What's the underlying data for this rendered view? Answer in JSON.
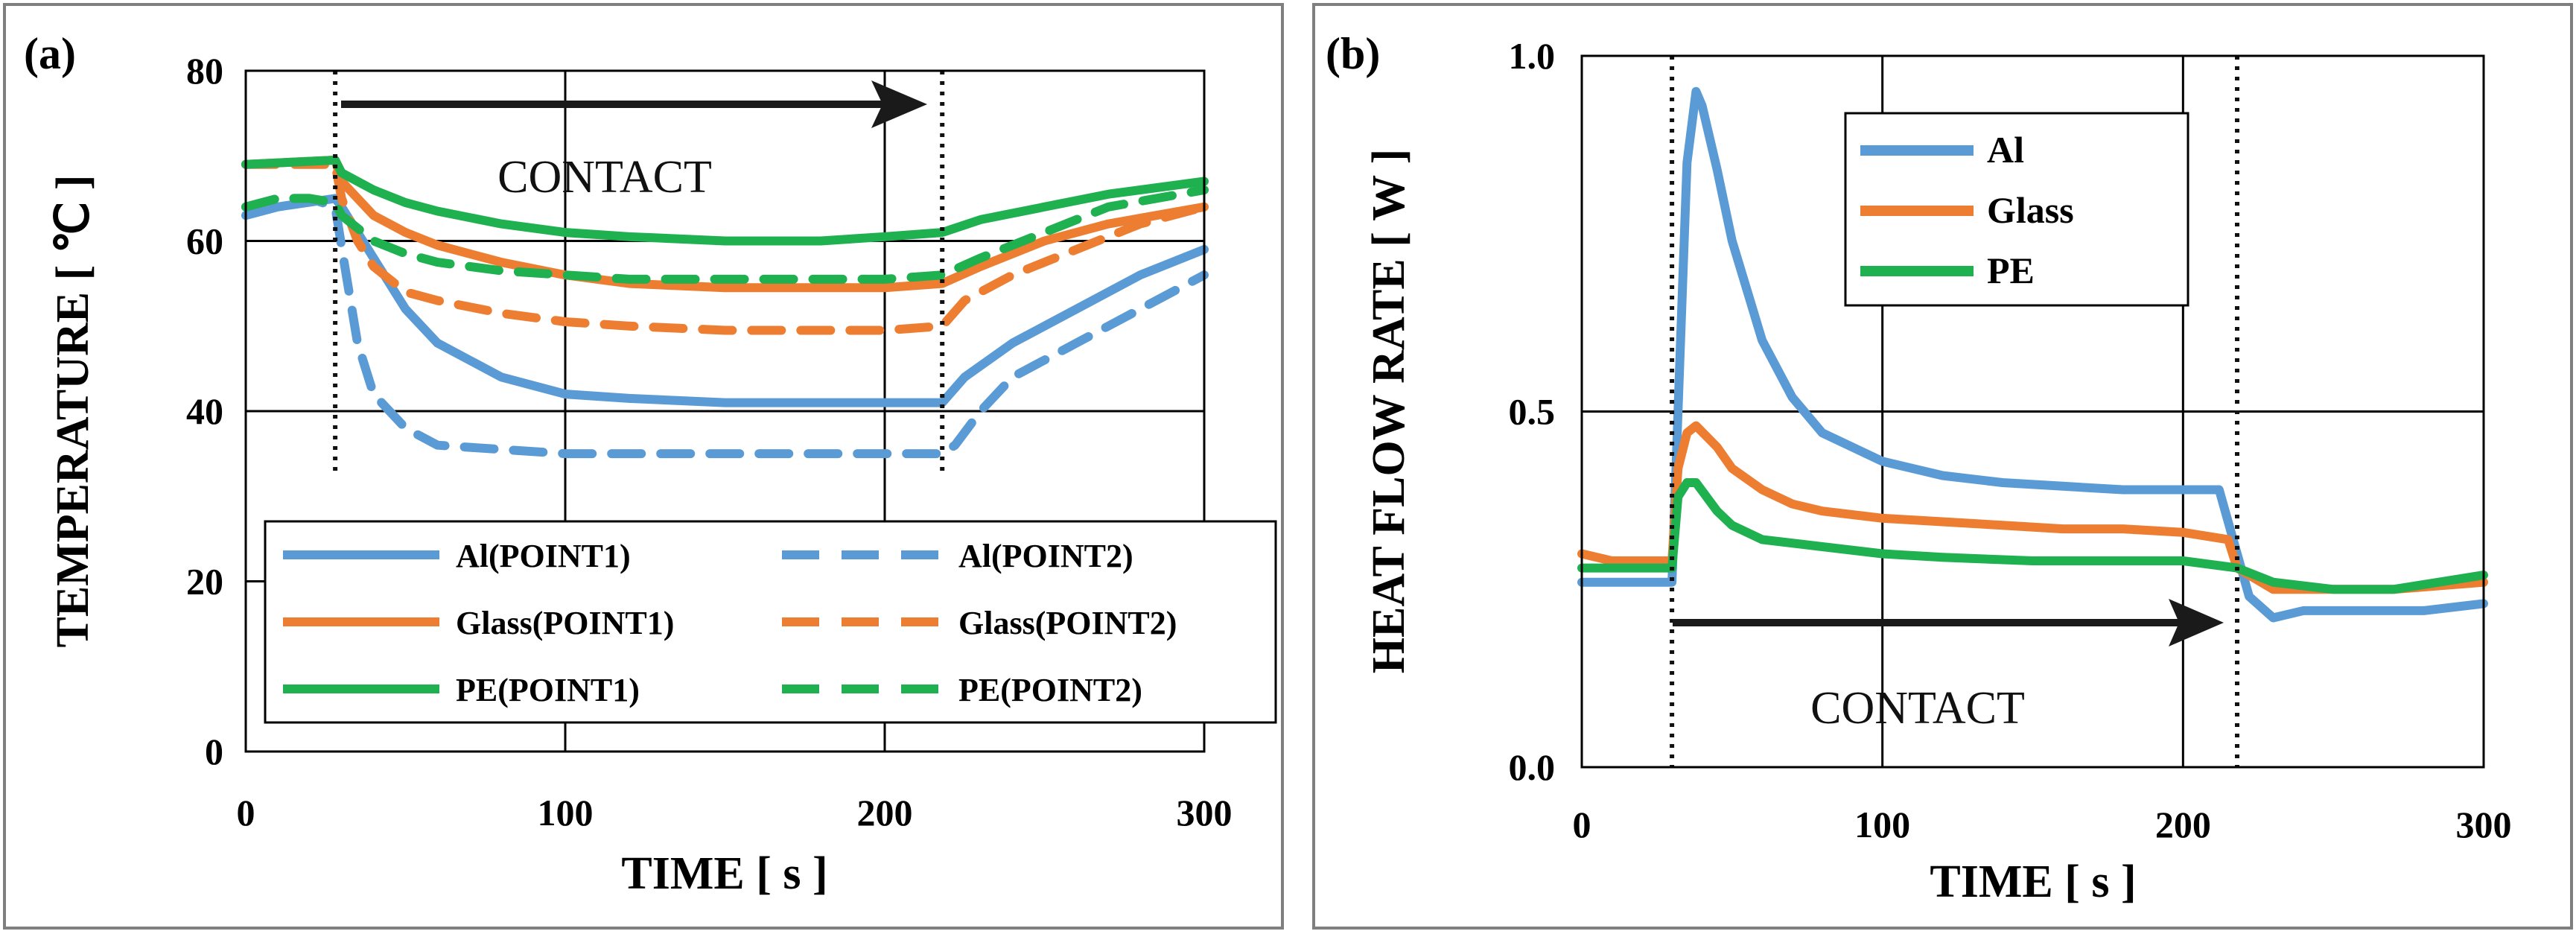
{
  "colors": {
    "blue": "#5b9bd5",
    "orange": "#ed7d31",
    "green": "#1fb050",
    "arrow": "#1a1a1a"
  },
  "chart_data": [
    {
      "type": "line",
      "panel_label": "(a)",
      "xlabel": "TIME [ s ]",
      "ylabel": "TEMPERATURE [ ℃ ]",
      "xlim": [
        0,
        300
      ],
      "ylim": [
        0,
        80
      ],
      "xticks": [
        "0",
        "100",
        "200",
        "300"
      ],
      "yticks": [
        "0",
        "20",
        "40",
        "60",
        "80"
      ],
      "annotation": "CONTACT",
      "contact_start": 28,
      "contact_end": 218,
      "series": [
        {
          "name": "Al(POINT1)",
          "color": "blue",
          "dash": "solid",
          "x": [
            0,
            10,
            28,
            30,
            40,
            50,
            60,
            80,
            100,
            120,
            150,
            180,
            200,
            218,
            225,
            240,
            260,
            280,
            300
          ],
          "y": [
            63,
            64,
            65,
            64,
            58,
            52,
            48,
            44,
            42,
            41.5,
            41,
            41,
            41,
            41,
            44,
            48,
            52,
            56,
            59
          ]
        },
        {
          "name": "Al(POINT2)",
          "color": "blue",
          "dash": "dashed",
          "x": [
            0,
            10,
            20,
            28,
            31,
            35,
            40,
            50,
            60,
            80,
            100,
            120,
            150,
            180,
            200,
            218,
            222,
            230,
            240,
            260,
            280,
            300
          ],
          "y": [
            64,
            65,
            65,
            64,
            57,
            48,
            42,
            38,
            36,
            35.5,
            35,
            35,
            35,
            35,
            35,
            35,
            36,
            40,
            44,
            48,
            52,
            56
          ]
        },
        {
          "name": "Glass(POINT1)",
          "color": "orange",
          "dash": "solid",
          "x": [
            0,
            28,
            30,
            40,
            50,
            60,
            80,
            100,
            120,
            150,
            180,
            200,
            218,
            230,
            250,
            270,
            300
          ],
          "y": [
            69,
            69.5,
            67,
            63,
            61,
            59.5,
            57.5,
            56,
            55,
            54.5,
            54.5,
            54.5,
            55,
            57,
            60,
            62,
            64
          ]
        },
        {
          "name": "Glass(POINT2)",
          "color": "orange",
          "dash": "dashed",
          "x": [
            0,
            28,
            30,
            35,
            40,
            50,
            60,
            80,
            100,
            120,
            150,
            180,
            200,
            218,
            225,
            240,
            260,
            280,
            300
          ],
          "y": [
            69,
            69,
            65,
            60,
            57,
            54,
            53,
            51.5,
            50.5,
            50,
            49.5,
            49.5,
            49.5,
            50,
            53,
            56,
            59,
            62,
            64
          ]
        },
        {
          "name": "PE(POINT1)",
          "color": "green",
          "dash": "solid",
          "x": [
            0,
            28,
            30,
            40,
            50,
            60,
            80,
            100,
            120,
            150,
            180,
            200,
            218,
            230,
            250,
            270,
            300
          ],
          "y": [
            69,
            69.5,
            68,
            66,
            64.5,
            63.5,
            62,
            61,
            60.5,
            60,
            60,
            60.5,
            61,
            62.5,
            64,
            65.5,
            67
          ]
        },
        {
          "name": "PE(POINT2)",
          "color": "green",
          "dash": "dashed",
          "x": [
            0,
            10,
            20,
            28,
            30,
            40,
            50,
            60,
            80,
            100,
            120,
            150,
            180,
            200,
            218,
            230,
            250,
            270,
            300
          ],
          "y": [
            64,
            65,
            65,
            64.5,
            63,
            60,
            58.5,
            57.5,
            56.5,
            56,
            55.5,
            55.5,
            55.5,
            55.5,
            56,
            58,
            61,
            64,
            66
          ]
        }
      ]
    },
    {
      "type": "line",
      "panel_label": "(b)",
      "xlabel": "TIME [ s ]",
      "ylabel": "HEAT FLOW RATE [ W ]",
      "xlim": [
        0,
        300
      ],
      "ylim": [
        0,
        1
      ],
      "xticks": [
        "0",
        "100",
        "200",
        "300"
      ],
      "yticks": [
        "0.0",
        "0.5",
        "1.0"
      ],
      "annotation": "CONTACT",
      "contact_start": 30,
      "contact_end": 218,
      "series": [
        {
          "name": "Al",
          "color": "blue",
          "dash": "solid",
          "x": [
            0,
            20,
            30,
            32,
            35,
            38,
            40,
            45,
            50,
            60,
            70,
            80,
            100,
            120,
            140,
            160,
            180,
            200,
            212,
            218,
            222,
            230,
            240,
            260,
            280,
            300
          ],
          "y": [
            0.26,
            0.26,
            0.26,
            0.5,
            0.85,
            0.95,
            0.93,
            0.84,
            0.74,
            0.6,
            0.52,
            0.47,
            0.43,
            0.41,
            0.4,
            0.395,
            0.39,
            0.39,
            0.39,
            0.3,
            0.24,
            0.21,
            0.22,
            0.22,
            0.22,
            0.23
          ]
        },
        {
          "name": "Glass",
          "color": "orange",
          "dash": "solid",
          "x": [
            0,
            10,
            30,
            32,
            35,
            38,
            45,
            50,
            60,
            70,
            80,
            100,
            120,
            140,
            160,
            180,
            200,
            215,
            218,
            230,
            250,
            270,
            300
          ],
          "y": [
            0.3,
            0.29,
            0.29,
            0.42,
            0.47,
            0.48,
            0.45,
            0.42,
            0.39,
            0.37,
            0.36,
            0.35,
            0.345,
            0.34,
            0.335,
            0.335,
            0.33,
            0.32,
            0.28,
            0.25,
            0.25,
            0.25,
            0.26
          ]
        },
        {
          "name": "PE",
          "color": "green",
          "dash": "solid",
          "x": [
            0,
            20,
            30,
            32,
            35,
            38,
            45,
            50,
            60,
            80,
            100,
            120,
            150,
            180,
            200,
            218,
            230,
            250,
            270,
            300
          ],
          "y": [
            0.28,
            0.28,
            0.28,
            0.38,
            0.4,
            0.4,
            0.36,
            0.34,
            0.32,
            0.31,
            0.3,
            0.295,
            0.29,
            0.29,
            0.29,
            0.28,
            0.26,
            0.25,
            0.25,
            0.27
          ]
        }
      ]
    }
  ]
}
